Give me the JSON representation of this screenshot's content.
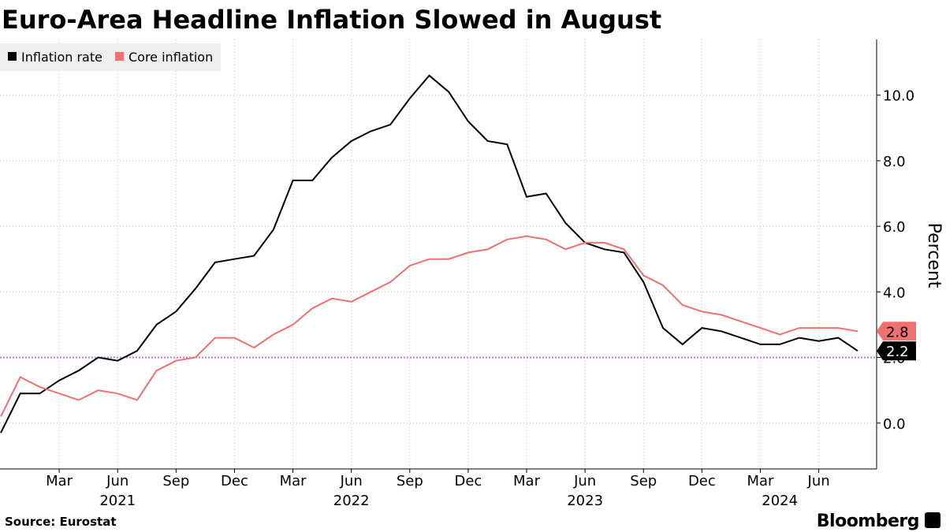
{
  "chart_data": {
    "type": "line",
    "title": "Euro-Area Headline Inflation Slowed in August",
    "source": "Source: Eurostat",
    "brand": "Bloomberg",
    "y_axis_label": "Percent",
    "x": [
      "2020-12",
      "2021-01",
      "2021-02",
      "2021-03",
      "2021-04",
      "2021-05",
      "2021-06",
      "2021-07",
      "2021-08",
      "2021-09",
      "2021-10",
      "2021-11",
      "2021-12",
      "2022-01",
      "2022-02",
      "2022-03",
      "2022-04",
      "2022-05",
      "2022-06",
      "2022-07",
      "2022-08",
      "2022-09",
      "2022-10",
      "2022-11",
      "2022-12",
      "2023-01",
      "2023-02",
      "2023-03",
      "2023-04",
      "2023-05",
      "2023-06",
      "2023-07",
      "2023-08",
      "2023-09",
      "2023-10",
      "2023-11",
      "2023-12",
      "2024-01",
      "2024-02",
      "2024-03",
      "2024-04",
      "2024-05",
      "2024-06",
      "2024-07",
      "2024-08"
    ],
    "series": [
      {
        "name": "Inflation rate",
        "color": "#000000",
        "values": [
          -0.3,
          0.9,
          0.9,
          1.3,
          1.6,
          2.0,
          1.9,
          2.2,
          3.0,
          3.4,
          4.1,
          4.9,
          5.0,
          5.1,
          5.9,
          7.4,
          7.4,
          8.1,
          8.6,
          8.9,
          9.1,
          9.9,
          10.6,
          10.1,
          9.2,
          8.6,
          8.5,
          6.9,
          7.0,
          6.1,
          5.5,
          5.3,
          5.2,
          4.3,
          2.9,
          2.4,
          2.9,
          2.8,
          2.6,
          2.4,
          2.4,
          2.6,
          2.5,
          2.6,
          2.2
        ]
      },
      {
        "name": "Core inflation",
        "color": "#f07070",
        "values": [
          0.2,
          1.4,
          1.1,
          0.9,
          0.7,
          1.0,
          0.9,
          0.7,
          1.6,
          1.9,
          2.0,
          2.6,
          2.6,
          2.3,
          2.7,
          3.0,
          3.5,
          3.8,
          3.7,
          4.0,
          4.3,
          4.8,
          5.0,
          5.0,
          5.2,
          5.3,
          5.6,
          5.7,
          5.6,
          5.3,
          5.5,
          5.5,
          5.3,
          4.5,
          4.2,
          3.6,
          3.4,
          3.3,
          3.1,
          2.9,
          2.7,
          2.9,
          2.9,
          2.9,
          2.8
        ]
      }
    ],
    "ylim": [
      -1.4,
      11.7
    ],
    "yticks": [
      {
        "value": 0,
        "label": "0.0"
      },
      {
        "value": 2,
        "label": "2.0"
      },
      {
        "value": 4,
        "label": "4.0"
      },
      {
        "value": 6,
        "label": "6.0"
      },
      {
        "value": 8,
        "label": "8.0"
      },
      {
        "value": 10,
        "label": "10.0"
      }
    ],
    "xticks": [
      {
        "value": "2021-03",
        "label": "Mar"
      },
      {
        "value": "2021-06",
        "label": "Jun"
      },
      {
        "value": "2021-09",
        "label": "Sep"
      },
      {
        "value": "2021-12",
        "label": "Dec"
      },
      {
        "value": "2022-03",
        "label": "Mar"
      },
      {
        "value": "2022-06",
        "label": "Jun"
      },
      {
        "value": "2022-09",
        "label": "Sep"
      },
      {
        "value": "2022-12",
        "label": "Dec"
      },
      {
        "value": "2023-03",
        "label": "Mar"
      },
      {
        "value": "2023-06",
        "label": "Jun"
      },
      {
        "value": "2023-09",
        "label": "Sep"
      },
      {
        "value": "2023-12",
        "label": "Dec"
      },
      {
        "value": "2024-03",
        "label": "Mar"
      },
      {
        "value": "2024-06",
        "label": "Jun"
      }
    ],
    "x_year_labels": [
      {
        "value": "2021-06",
        "label": "2021"
      },
      {
        "value": "2022-06",
        "label": "2022"
      },
      {
        "value": "2023-06",
        "label": "2023"
      },
      {
        "value": "2024-04",
        "label": "2024"
      }
    ],
    "reference_line": {
      "value": 2,
      "color": "#c77be6"
    },
    "grid": true,
    "legend": "top-left"
  }
}
